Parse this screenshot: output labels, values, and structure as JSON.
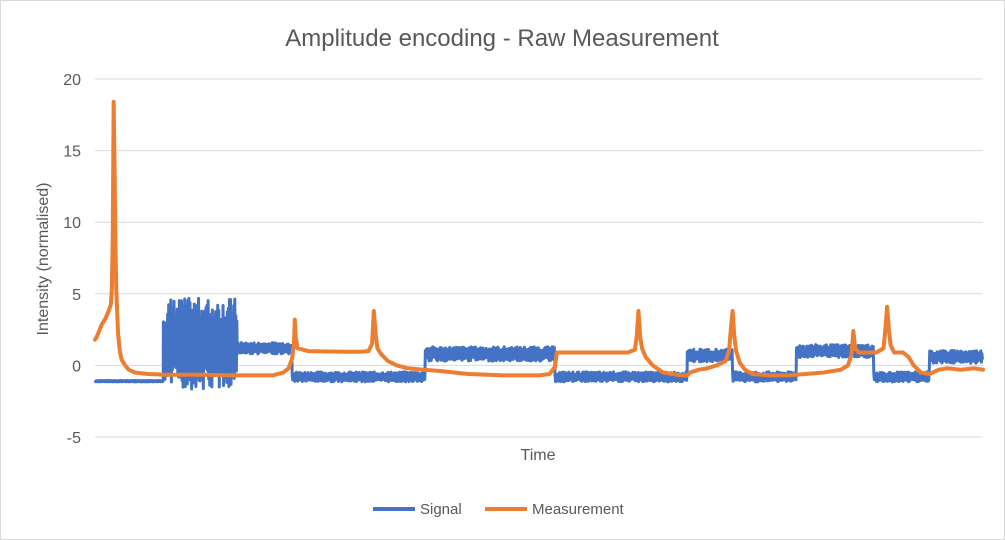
{
  "chart_data": {
    "type": "line",
    "title": "Amplitude encoding - Raw Measurement",
    "xlabel": "Time",
    "ylabel": "Intensity (normalised)",
    "ylim": [
      -5,
      20
    ],
    "xlim": [
      0,
      1000
    ],
    "yticks": [
      "-5",
      "0",
      "5",
      "10",
      "15",
      "20"
    ],
    "grid": true,
    "legend_position": "bottom",
    "series": [
      {
        "name": "Signal",
        "color": "#4472C4",
        "segments": [
          {
            "x0": 0,
            "x1": 77,
            "base": -1.1,
            "noise": 0.05
          },
          {
            "x0": 77,
            "x1": 160,
            "base": 1.5,
            "noise": 3.2
          },
          {
            "x0": 160,
            "x1": 222,
            "base": 1.2,
            "noise": 0.4
          },
          {
            "x0": 222,
            "x1": 372,
            "base": -0.8,
            "noise": 0.35
          },
          {
            "x0": 372,
            "x1": 518,
            "base": 0.8,
            "noise": 0.5
          },
          {
            "x0": 518,
            "x1": 667,
            "base": -0.8,
            "noise": 0.35
          },
          {
            "x0": 667,
            "x1": 718,
            "base": 0.7,
            "noise": 0.45
          },
          {
            "x0": 718,
            "x1": 790,
            "base": -0.8,
            "noise": 0.35
          },
          {
            "x0": 790,
            "x1": 877,
            "base": 1.0,
            "noise": 0.45
          },
          {
            "x0": 877,
            "x1": 940,
            "base": -0.8,
            "noise": 0.35
          },
          {
            "x0": 940,
            "x1": 1000,
            "base": 0.6,
            "noise": 0.45
          }
        ]
      },
      {
        "name": "Measurement",
        "color": "#ED7D31",
        "points": [
          [
            0,
            1.8
          ],
          [
            2,
            2.0
          ],
          [
            4,
            2.3
          ],
          [
            6,
            2.6
          ],
          [
            8,
            2.9
          ],
          [
            10,
            3.1
          ],
          [
            12,
            3.3
          ],
          [
            14,
            3.6
          ],
          [
            16,
            3.9
          ],
          [
            18,
            4.3
          ],
          [
            19,
            5.5
          ],
          [
            20,
            9.0
          ],
          [
            21,
            18.4
          ],
          [
            22,
            14.0
          ],
          [
            23,
            8.5
          ],
          [
            24,
            5.2
          ],
          [
            26,
            2.2
          ],
          [
            28,
            1.0
          ],
          [
            30,
            0.4
          ],
          [
            34,
            0.0
          ],
          [
            38,
            -0.3
          ],
          [
            45,
            -0.5
          ],
          [
            60,
            -0.6
          ],
          [
            80,
            -0.65
          ],
          [
            120,
            -0.65
          ],
          [
            160,
            -0.7
          ],
          [
            200,
            -0.7
          ],
          [
            212,
            -0.5
          ],
          [
            218,
            -0.2
          ],
          [
            222,
            0.5
          ],
          [
            224,
            1.5
          ],
          [
            225,
            3.2
          ],
          [
            226,
            2.0
          ],
          [
            228,
            1.2
          ],
          [
            240,
            1.0
          ],
          [
            280,
            0.95
          ],
          [
            300,
            0.95
          ],
          [
            308,
            1.0
          ],
          [
            312,
            1.5
          ],
          [
            314,
            3.8
          ],
          [
            316,
            2.2
          ],
          [
            318,
            1.2
          ],
          [
            322,
            0.8
          ],
          [
            330,
            0.3
          ],
          [
            340,
            0.0
          ],
          [
            352,
            -0.2
          ],
          [
            370,
            -0.3
          ],
          [
            390,
            -0.4
          ],
          [
            420,
            -0.6
          ],
          [
            460,
            -0.7
          ],
          [
            500,
            -0.7
          ],
          [
            512,
            -0.6
          ],
          [
            518,
            -0.1
          ],
          [
            520,
            0.9
          ],
          [
            540,
            0.9
          ],
          [
            580,
            0.9
          ],
          [
            600,
            0.9
          ],
          [
            608,
            1.1
          ],
          [
            610,
            2.0
          ],
          [
            612,
            3.8
          ],
          [
            614,
            2.0
          ],
          [
            616,
            1.2
          ],
          [
            620,
            0.6
          ],
          [
            628,
            0.0
          ],
          [
            640,
            -0.5
          ],
          [
            660,
            -0.7
          ],
          [
            667,
            -0.7
          ],
          [
            670,
            -0.5
          ],
          [
            680,
            -0.3
          ],
          [
            690,
            -0.2
          ],
          [
            700,
            0.0
          ],
          [
            710,
            0.3
          ],
          [
            714,
            1.0
          ],
          [
            716,
            2.5
          ],
          [
            718,
            3.8
          ],
          [
            720,
            2.0
          ],
          [
            722,
            1.0
          ],
          [
            726,
            0.2
          ],
          [
            732,
            -0.3
          ],
          [
            740,
            -0.6
          ],
          [
            760,
            -0.7
          ],
          [
            780,
            -0.7
          ],
          [
            800,
            -0.6
          ],
          [
            820,
            -0.5
          ],
          [
            840,
            -0.3
          ],
          [
            848,
            0.0
          ],
          [
            852,
            0.8
          ],
          [
            854,
            2.4
          ],
          [
            856,
            1.2
          ],
          [
            860,
            0.9
          ],
          [
            880,
            0.9
          ],
          [
            888,
            1.2
          ],
          [
            890,
            2.5
          ],
          [
            892,
            4.1
          ],
          [
            894,
            2.5
          ],
          [
            896,
            1.4
          ],
          [
            900,
            0.9
          ],
          [
            910,
            0.9
          ],
          [
            916,
            0.6
          ],
          [
            922,
            0.0
          ],
          [
            930,
            -0.5
          ],
          [
            940,
            -0.6
          ],
          [
            950,
            -0.3
          ],
          [
            960,
            -0.2
          ],
          [
            975,
            -0.3
          ],
          [
            990,
            -0.2
          ],
          [
            1000,
            -0.3
          ]
        ]
      }
    ]
  }
}
